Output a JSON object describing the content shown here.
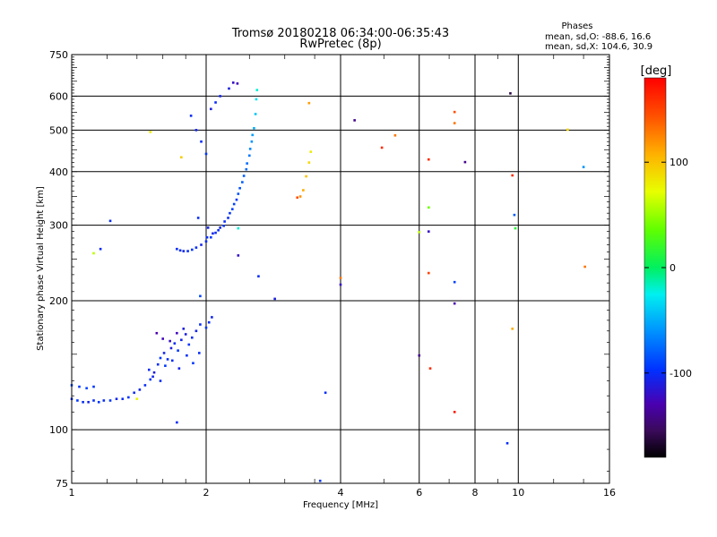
{
  "title_line1": "Tromsø 20180218 06:34:00-06:35:43",
  "title_line2": "RwPretec (8p)",
  "stats": {
    "heading": "Phases",
    "line_o": "mean, sd,O: -88.6, 16.6",
    "line_x": "mean, sd,X: 104.6, 30.9"
  },
  "colorbar": {
    "unit_label": "[deg]",
    "ticks": [
      "100",
      "0",
      "-100"
    ],
    "range": [
      -180,
      180
    ],
    "tick_values": [
      100,
      0,
      -100
    ]
  },
  "chart_data": {
    "type": "scatter",
    "xlabel": "Frequency [MHz]",
    "ylabel": "Stationary phase Virtual Height [km]",
    "x_scale": "log",
    "y_scale": "log",
    "xlim": [
      1,
      16
    ],
    "ylim": [
      75,
      750
    ],
    "x_ticks": [
      1,
      2,
      4,
      6,
      8,
      10,
      16
    ],
    "x_tick_labels": [
      "1",
      "2",
      "4",
      "6",
      "8",
      "10",
      "16"
    ],
    "y_ticks": [
      75,
      100,
      200,
      300,
      400,
      500,
      600,
      750
    ],
    "y_tick_labels": [
      "75",
      "100",
      "200",
      "300",
      "400",
      "500",
      "600",
      "750"
    ],
    "grid": true,
    "point_color_encodes": "phase [deg]",
    "points": [
      [
        1.0,
        118,
        -100
      ],
      [
        1.03,
        117,
        -95
      ],
      [
        1.06,
        116,
        -100
      ],
      [
        1.09,
        116,
        -105
      ],
      [
        1.12,
        117,
        -100
      ],
      [
        1.15,
        116,
        -95
      ],
      [
        1.18,
        117,
        -100
      ],
      [
        1.22,
        117,
        -95
      ],
      [
        1.26,
        118,
        -105
      ],
      [
        1.3,
        118,
        -100
      ],
      [
        1.34,
        119,
        -95
      ],
      [
        1.38,
        122,
        -100
      ],
      [
        1.42,
        124,
        -105
      ],
      [
        1.46,
        127,
        -100
      ],
      [
        1.5,
        131,
        -95
      ],
      [
        1.53,
        136,
        -110
      ],
      [
        1.56,
        142,
        -100
      ],
      [
        1.58,
        147,
        -95
      ],
      [
        1.61,
        151,
        -105
      ],
      [
        1.64,
        146,
        -100
      ],
      [
        1.67,
        155,
        -110
      ],
      [
        1.7,
        159,
        -100
      ],
      [
        1.73,
        153,
        -95
      ],
      [
        1.76,
        162,
        -105
      ],
      [
        1.8,
        167,
        -110
      ],
      [
        1.83,
        158,
        -95
      ],
      [
        1.86,
        164,
        -100
      ],
      [
        1.9,
        170,
        -105
      ],
      [
        1.94,
        176,
        -100
      ],
      [
        2.0,
        173,
        -95
      ],
      [
        2.03,
        178,
        -100
      ],
      [
        2.06,
        183,
        -105
      ],
      [
        1.55,
        168,
        -130
      ],
      [
        1.6,
        163,
        -125
      ],
      [
        1.66,
        161,
        -120
      ],
      [
        1.72,
        168,
        -125
      ],
      [
        1.78,
        172,
        -110
      ],
      [
        1.49,
        138,
        -100
      ],
      [
        1.52,
        133,
        -105
      ],
      [
        1.58,
        130,
        -100
      ],
      [
        1.62,
        141,
        -95
      ],
      [
        1.68,
        145,
        -100
      ],
      [
        1.74,
        139,
        -105
      ],
      [
        1.81,
        149,
        -100
      ],
      [
        1.87,
        143,
        -95
      ],
      [
        1.93,
        151,
        -100
      ],
      [
        1.0,
        127,
        -90
      ],
      [
        1.04,
        126,
        -95
      ],
      [
        1.08,
        125,
        -90
      ],
      [
        1.12,
        126,
        -95
      ],
      [
        1.4,
        118,
        75
      ],
      [
        1.72,
        104,
        -100
      ],
      [
        1.22,
        307,
        -100
      ],
      [
        1.16,
        264,
        -100
      ],
      [
        1.12,
        258,
        60
      ],
      [
        1.5,
        495,
        80
      ],
      [
        1.76,
        432,
        95
      ],
      [
        1.72,
        264,
        -100
      ],
      [
        1.75,
        262,
        -100
      ],
      [
        1.78,
        261,
        -105
      ],
      [
        1.82,
        261,
        -100
      ],
      [
        1.86,
        263,
        -95
      ],
      [
        1.9,
        266,
        -100
      ],
      [
        1.95,
        270,
        -105
      ],
      [
        2.0,
        275,
        -100
      ],
      [
        2.05,
        281,
        -95
      ],
      [
        2.1,
        288,
        -100
      ],
      [
        2.15,
        296,
        -105
      ],
      [
        2.2,
        306,
        -100
      ],
      [
        2.26,
        320,
        -95
      ],
      [
        2.31,
        336,
        -90
      ],
      [
        2.36,
        355,
        -85
      ],
      [
        2.41,
        378,
        -80
      ],
      [
        2.46,
        405,
        -75
      ],
      [
        2.5,
        436,
        -70
      ],
      [
        2.53,
        470,
        -60
      ],
      [
        2.56,
        505,
        -50
      ],
      [
        2.58,
        545,
        -40
      ],
      [
        2.59,
        590,
        -30
      ],
      [
        2.6,
        620,
        -20
      ],
      [
        2.01,
        281,
        -100
      ],
      [
        2.07,
        287,
        -105
      ],
      [
        2.13,
        292,
        -100
      ],
      [
        2.19,
        299,
        -95
      ],
      [
        2.24,
        312,
        -100
      ],
      [
        2.29,
        327,
        -90
      ],
      [
        2.34,
        344,
        -95
      ],
      [
        2.38,
        366,
        -85
      ],
      [
        2.43,
        391,
        -80
      ],
      [
        2.47,
        418,
        -75
      ],
      [
        2.51,
        452,
        -65
      ],
      [
        2.54,
        487,
        -55
      ],
      [
        1.85,
        540,
        -100
      ],
      [
        1.9,
        500,
        -105
      ],
      [
        1.95,
        470,
        -100
      ],
      [
        2.0,
        440,
        -95
      ],
      [
        2.05,
        560,
        -110
      ],
      [
        2.1,
        580,
        -100
      ],
      [
        2.15,
        600,
        -105
      ],
      [
        2.25,
        625,
        -110
      ],
      [
        2.3,
        645,
        -120
      ],
      [
        2.35,
        642,
        -125
      ],
      [
        1.92,
        312,
        -100
      ],
      [
        2.02,
        296,
        -105
      ],
      [
        2.36,
        295,
        -20
      ],
      [
        3.25,
        350,
        120
      ],
      [
        3.3,
        362,
        110
      ],
      [
        3.35,
        390,
        100
      ],
      [
        3.4,
        420,
        90
      ],
      [
        3.43,
        445,
        80
      ],
      [
        3.2,
        348,
        145
      ],
      [
        2.62,
        228,
        -100
      ],
      [
        2.85,
        202,
        -110
      ],
      [
        2.36,
        255,
        -120
      ],
      [
        1.94,
        205,
        -90
      ],
      [
        3.4,
        578,
        115
      ],
      [
        4.0,
        226,
        130
      ],
      [
        4.0,
        218,
        -120
      ],
      [
        4.3,
        527,
        -140
      ],
      [
        4.95,
        455,
        160
      ],
      [
        5.3,
        486,
        130
      ],
      [
        6.0,
        289,
        60
      ],
      [
        6.0,
        149,
        -140
      ],
      [
        6.3,
        427,
        160
      ],
      [
        6.3,
        290,
        -120
      ],
      [
        6.3,
        330,
        40
      ],
      [
        6.3,
        232,
        150
      ],
      [
        6.35,
        139,
        160
      ],
      [
        7.2,
        551,
        145
      ],
      [
        7.2,
        519,
        130
      ],
      [
        7.2,
        221,
        -90
      ],
      [
        7.2,
        197,
        -130
      ],
      [
        7.2,
        110,
        170
      ],
      [
        7.6,
        421,
        -140
      ],
      [
        9.6,
        609,
        -160
      ],
      [
        9.7,
        392,
        160
      ],
      [
        9.8,
        317,
        -80
      ],
      [
        9.85,
        295,
        15
      ],
      [
        9.7,
        172,
        110
      ],
      [
        9.45,
        93,
        -100
      ],
      [
        12.9,
        501,
        90
      ],
      [
        14.0,
        410,
        -60
      ],
      [
        14.1,
        240,
        130
      ],
      [
        3.6,
        76,
        -95
      ],
      [
        3.7,
        122,
        -100
      ]
    ]
  }
}
